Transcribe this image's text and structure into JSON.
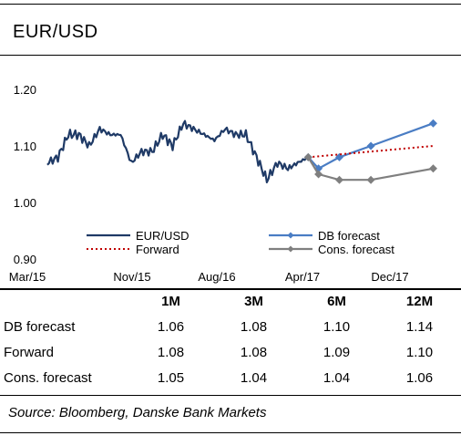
{
  "title": "EUR/USD",
  "source": "Source: Bloomberg, Danske Bank Markets",
  "colors": {
    "history": "#1f3a66",
    "db_forecast": "#4a7dc4",
    "forward": "#c00000",
    "consensus": "#7f7f7f",
    "rule": "#000000"
  },
  "chart_data": {
    "type": "line",
    "title": "",
    "y_ticks": [
      "0.90",
      "1.00",
      "1.10",
      "1.20"
    ],
    "x_ticks": [
      "Mar/15",
      "Nov/15",
      "Aug/16",
      "Apr/17",
      "Dec/17"
    ],
    "ylim": [
      0.9,
      1.2
    ],
    "grid": false,
    "legend": "bottom",
    "series": [
      {
        "name": "EUR/USD",
        "style": "solid",
        "x": [
          "2015-03",
          "2015-04",
          "2015-05",
          "2015-06",
          "2015-07",
          "2015-08",
          "2015-09",
          "2015-10",
          "2015-11",
          "2015-12",
          "2016-01",
          "2016-02",
          "2016-03",
          "2016-04",
          "2016-05",
          "2016-06",
          "2016-07",
          "2016-08",
          "2016-09",
          "2016-10",
          "2016-11",
          "2016-12",
          "2017-01",
          "2017-02",
          "2017-03",
          "2017-04"
        ],
        "y": [
          1.07,
          1.08,
          1.12,
          1.12,
          1.1,
          1.13,
          1.12,
          1.12,
          1.07,
          1.09,
          1.09,
          1.12,
          1.1,
          1.14,
          1.13,
          1.12,
          1.11,
          1.13,
          1.12,
          1.12,
          1.08,
          1.04,
          1.07,
          1.06,
          1.07,
          1.08
        ]
      },
      {
        "name": "DB forecast",
        "style": "line-diamond",
        "x": [
          "2017-04",
          "2017-05",
          "2017-07",
          "2017-10",
          "2018-04"
        ],
        "y": [
          1.08,
          1.06,
          1.08,
          1.1,
          1.14
        ]
      },
      {
        "name": "Forward",
        "style": "dotted",
        "x": [
          "2017-04",
          "2018-04"
        ],
        "y": [
          1.08,
          1.1
        ]
      },
      {
        "name": "Cons. forecast",
        "style": "line-diamond",
        "x": [
          "2017-04",
          "2017-05",
          "2017-07",
          "2017-10",
          "2018-04"
        ],
        "y": [
          1.08,
          1.05,
          1.04,
          1.04,
          1.06
        ]
      }
    ]
  },
  "table": {
    "columns": [
      "",
      "1M",
      "3M",
      "6M",
      "12M"
    ],
    "rows": [
      {
        "label": "DB forecast",
        "values": [
          "1.06",
          "1.08",
          "1.10",
          "1.14"
        ]
      },
      {
        "label": "Forward",
        "values": [
          "1.08",
          "1.08",
          "1.09",
          "1.10"
        ]
      },
      {
        "label": "Cons. forecast",
        "values": [
          "1.05",
          "1.04",
          "1.04",
          "1.06"
        ]
      }
    ]
  }
}
